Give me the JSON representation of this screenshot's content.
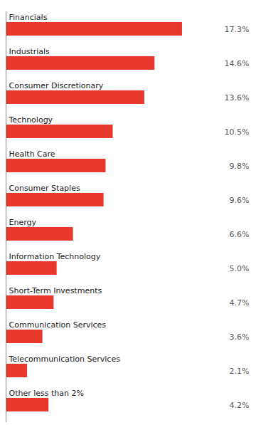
{
  "chart_data": {
    "type": "bar",
    "orientation": "horizontal",
    "categories": [
      "Financials",
      "Industrials",
      "Consumer Discretionary",
      "Technology",
      "Health Care",
      "Consumer Staples",
      "Energy",
      "Information Technology",
      "Short-Term Investments",
      "Communication Services",
      "Telecommunication Services",
      "Other less than 2%"
    ],
    "values": [
      17.3,
      14.6,
      13.6,
      10.5,
      9.8,
      9.6,
      6.6,
      5.0,
      4.7,
      3.6,
      2.1,
      4.2
    ],
    "value_labels": [
      "17.3%",
      "14.6%",
      "13.6%",
      "10.5%",
      "9.8%",
      "9.6%",
      "6.6%",
      "5.0%",
      "4.7%",
      "3.6%",
      "2.1%",
      "4.2%"
    ],
    "color": "#e8372c",
    "xlim": [
      0,
      24
    ],
    "data_labels": true,
    "tick_labels": false,
    "grid": false
  }
}
